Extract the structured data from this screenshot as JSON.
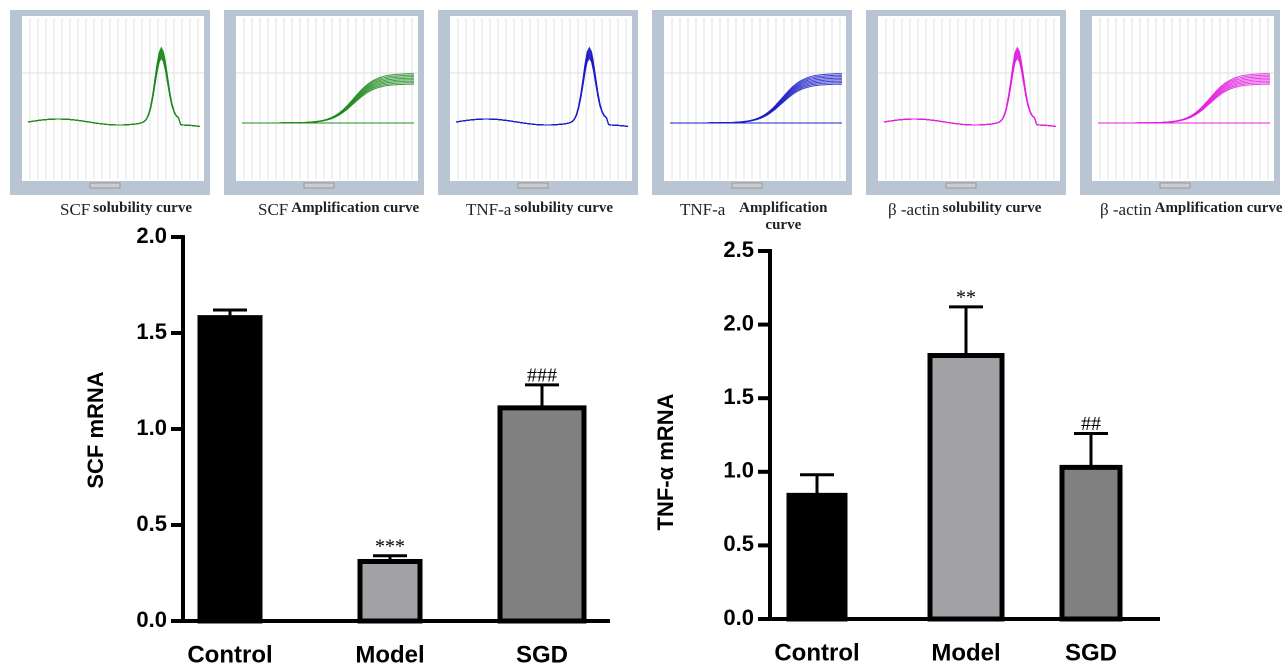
{
  "thumbnails": [
    {
      "prefix": "SCF",
      "label": "solubility curve",
      "color": "#1f8a1f"
    },
    {
      "prefix": "SCF",
      "label": "Amplification curve",
      "color": "#1f8a1f"
    },
    {
      "prefix": "TNF-a",
      "label": "solubility curve",
      "color": "#1c1cc8"
    },
    {
      "prefix": "TNF-a",
      "label": "Amplification curve",
      "color": "#1c1cc8"
    },
    {
      "prefix": "β -actin",
      "label": "solubility curve",
      "color": "#e020e0"
    },
    {
      "prefix": "β -actin",
      "label": "Amplification curve",
      "color": "#e020e0"
    }
  ],
  "chart_data": [
    {
      "type": "bar",
      "ylabel": "SCF mRNA",
      "categories": [
        "Control",
        "Model",
        "SGD"
      ],
      "values": [
        1.58,
        0.31,
        1.11
      ],
      "errors": [
        0.04,
        0.03,
        0.12
      ],
      "annotations": [
        null,
        "***",
        "###"
      ],
      "colors": [
        "#000000",
        "#a2a2a6",
        "#808080"
      ],
      "ylim": [
        0,
        2
      ],
      "yticks": [
        {
          "value": 0,
          "label": "0.0"
        },
        0.5,
        {
          "value": 1,
          "label": "1.0"
        },
        1.5,
        {
          "value": 2,
          "label": "2.0"
        }
      ]
    },
    {
      "type": "bar",
      "ylabel": "TNF-α mRNA",
      "categories": [
        "Control",
        "Model",
        "SGD"
      ],
      "values": [
        0.84,
        1.79,
        1.03
      ],
      "errors": [
        0.14,
        0.33,
        0.23
      ],
      "annotations": [
        null,
        "**",
        "##"
      ],
      "colors": [
        "#000000",
        "#a2a2a6",
        "#808080"
      ],
      "ylim": [
        0,
        2.5
      ],
      "yticks": [
        {
          "value": 0,
          "label": "0.0"
        },
        0.5,
        {
          "value": 1,
          "label": "1.0"
        },
        1.5,
        {
          "value": 2,
          "label": "2.0"
        },
        2.5
      ]
    }
  ]
}
